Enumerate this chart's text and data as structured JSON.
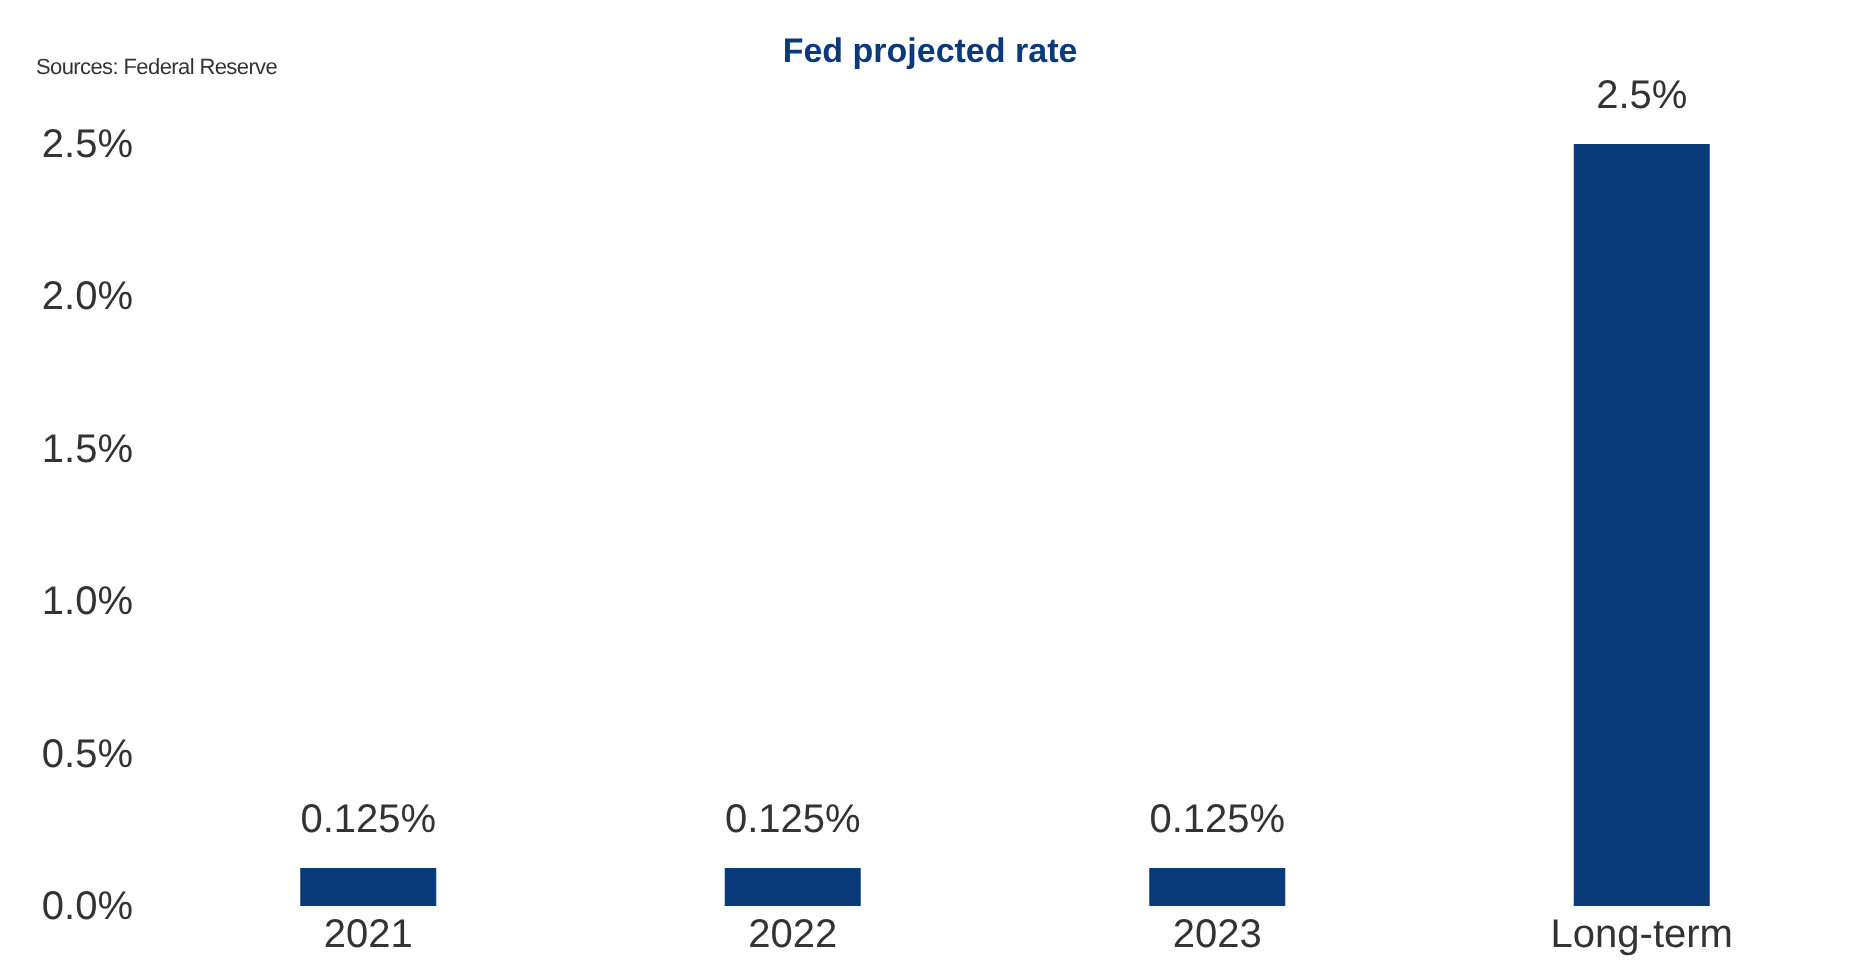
{
  "chart_data": {
    "type": "bar",
    "title": "Fed projected rate",
    "annotations": [
      "Sources: Federal Reserve"
    ],
    "categories": [
      "2021",
      "2022",
      "2023",
      "Long-term"
    ],
    "values": [
      0.125,
      0.125,
      0.125,
      2.5
    ],
    "value_labels": [
      "0.125%",
      "0.125%",
      "0.125%",
      "2.5%"
    ],
    "color": "#0a3a7a",
    "ylim": [
      0,
      2.5
    ],
    "yticks": [
      {
        "value": 0,
        "label": "0.0%"
      },
      {
        "value": 0.5,
        "label": "0.5%"
      },
      {
        "value": 1,
        "label": "1.0%"
      },
      {
        "value": 1.5,
        "label": "1.5%"
      },
      {
        "value": 2,
        "label": "2.0%"
      },
      {
        "value": 2.5,
        "label": "2.5%"
      }
    ],
    "grid": false
  }
}
